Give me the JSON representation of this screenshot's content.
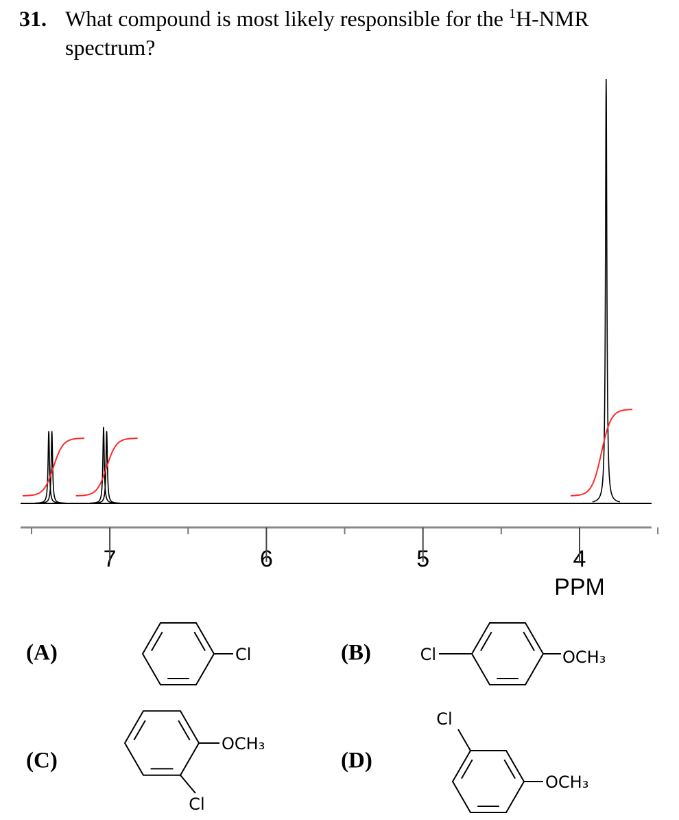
{
  "question": {
    "number": "31.",
    "text_before": "What compound is most likely responsible for the ",
    "superscript": "1",
    "text_after": "H-NMR spectrum?"
  },
  "spectrum": {
    "xlabel": "PPM",
    "xlim": [
      7.57,
      3.54
    ],
    "xticks": [
      7,
      6,
      5,
      4
    ],
    "minor_xticks": [
      7.5,
      6.5,
      5.5,
      4.5,
      3.5
    ],
    "ylim": [
      0,
      100
    ],
    "peaks": [
      {
        "shift": 7.39,
        "height": 17
      },
      {
        "shift": 7.37,
        "height": 17
      },
      {
        "shift": 7.04,
        "height": 18
      },
      {
        "shift": 7.02,
        "height": 17
      },
      {
        "shift": 3.83,
        "height": 100
      }
    ],
    "integrals": [
      {
        "shift": 7.36,
        "value": 2
      },
      {
        "shift": 7.02,
        "value": 2
      },
      {
        "shift": 3.86,
        "value": 3
      }
    ]
  },
  "options": [
    {
      "label": "(A)",
      "substituents": [
        "Cl"
      ]
    },
    {
      "label": "(B)",
      "substituents": [
        "Cl",
        "OCH₃"
      ]
    },
    {
      "label": "(C)",
      "substituents": [
        "OCH₃",
        "Cl"
      ]
    },
    {
      "label": "(D)",
      "substituents": [
        "Cl",
        "OCH₃"
      ]
    }
  ]
}
